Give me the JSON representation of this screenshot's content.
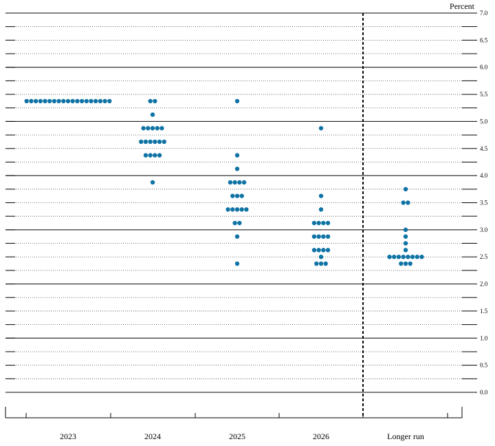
{
  "chart_data": {
    "type": "scatter",
    "unit_label": "Percent",
    "categories": [
      "2023",
      "2024",
      "2025",
      "2026",
      "Longer run"
    ],
    "ylim": [
      0,
      7
    ],
    "yticks": [
      "0.0",
      "0.5",
      "1.0",
      "1.5",
      "2.0",
      "2.5",
      "3.0",
      "3.5",
      "4.0",
      "4.5",
      "5.0",
      "5.5",
      "6.0",
      "6.5",
      "7.0"
    ],
    "grid": true,
    "legend": "none",
    "dot_color": "#0f73a5",
    "dots": [
      {
        "category": "2023",
        "rows": [
          {
            "y": 5.375,
            "count": 19
          }
        ]
      },
      {
        "category": "2024",
        "rows": [
          {
            "y": 5.375,
            "count": 2
          },
          {
            "y": 5.125,
            "count": 1
          },
          {
            "y": 4.875,
            "count": 5
          },
          {
            "y": 4.625,
            "count": 6
          },
          {
            "y": 4.375,
            "count": 4
          },
          {
            "y": 3.875,
            "count": 1
          }
        ]
      },
      {
        "category": "2025",
        "rows": [
          {
            "y": 5.375,
            "count": 1
          },
          {
            "y": 4.375,
            "count": 1
          },
          {
            "y": 4.125,
            "count": 1
          },
          {
            "y": 3.875,
            "count": 4
          },
          {
            "y": 3.625,
            "count": 3
          },
          {
            "y": 3.375,
            "count": 5
          },
          {
            "y": 3.125,
            "count": 2
          },
          {
            "y": 2.875,
            "count": 1
          },
          {
            "y": 2.375,
            "count": 1
          }
        ]
      },
      {
        "category": "2026",
        "rows": [
          {
            "y": 4.875,
            "count": 1
          },
          {
            "y": 3.625,
            "count": 1
          },
          {
            "y": 3.375,
            "count": 1
          },
          {
            "y": 3.125,
            "count": 4
          },
          {
            "y": 2.875,
            "count": 4
          },
          {
            "y": 2.625,
            "count": 4
          },
          {
            "y": 2.5,
            "count": 1
          },
          {
            "y": 2.375,
            "count": 3
          }
        ]
      },
      {
        "category": "Longer run",
        "rows": [
          {
            "y": 3.75,
            "count": 1
          },
          {
            "y": 3.5,
            "count": 2
          },
          {
            "y": 3.0,
            "count": 1
          },
          {
            "y": 2.875,
            "count": 1
          },
          {
            "y": 2.75,
            "count": 1
          },
          {
            "y": 2.625,
            "count": 1
          },
          {
            "y": 2.5,
            "count": 8
          },
          {
            "y": 2.375,
            "count": 3
          }
        ]
      }
    ]
  }
}
